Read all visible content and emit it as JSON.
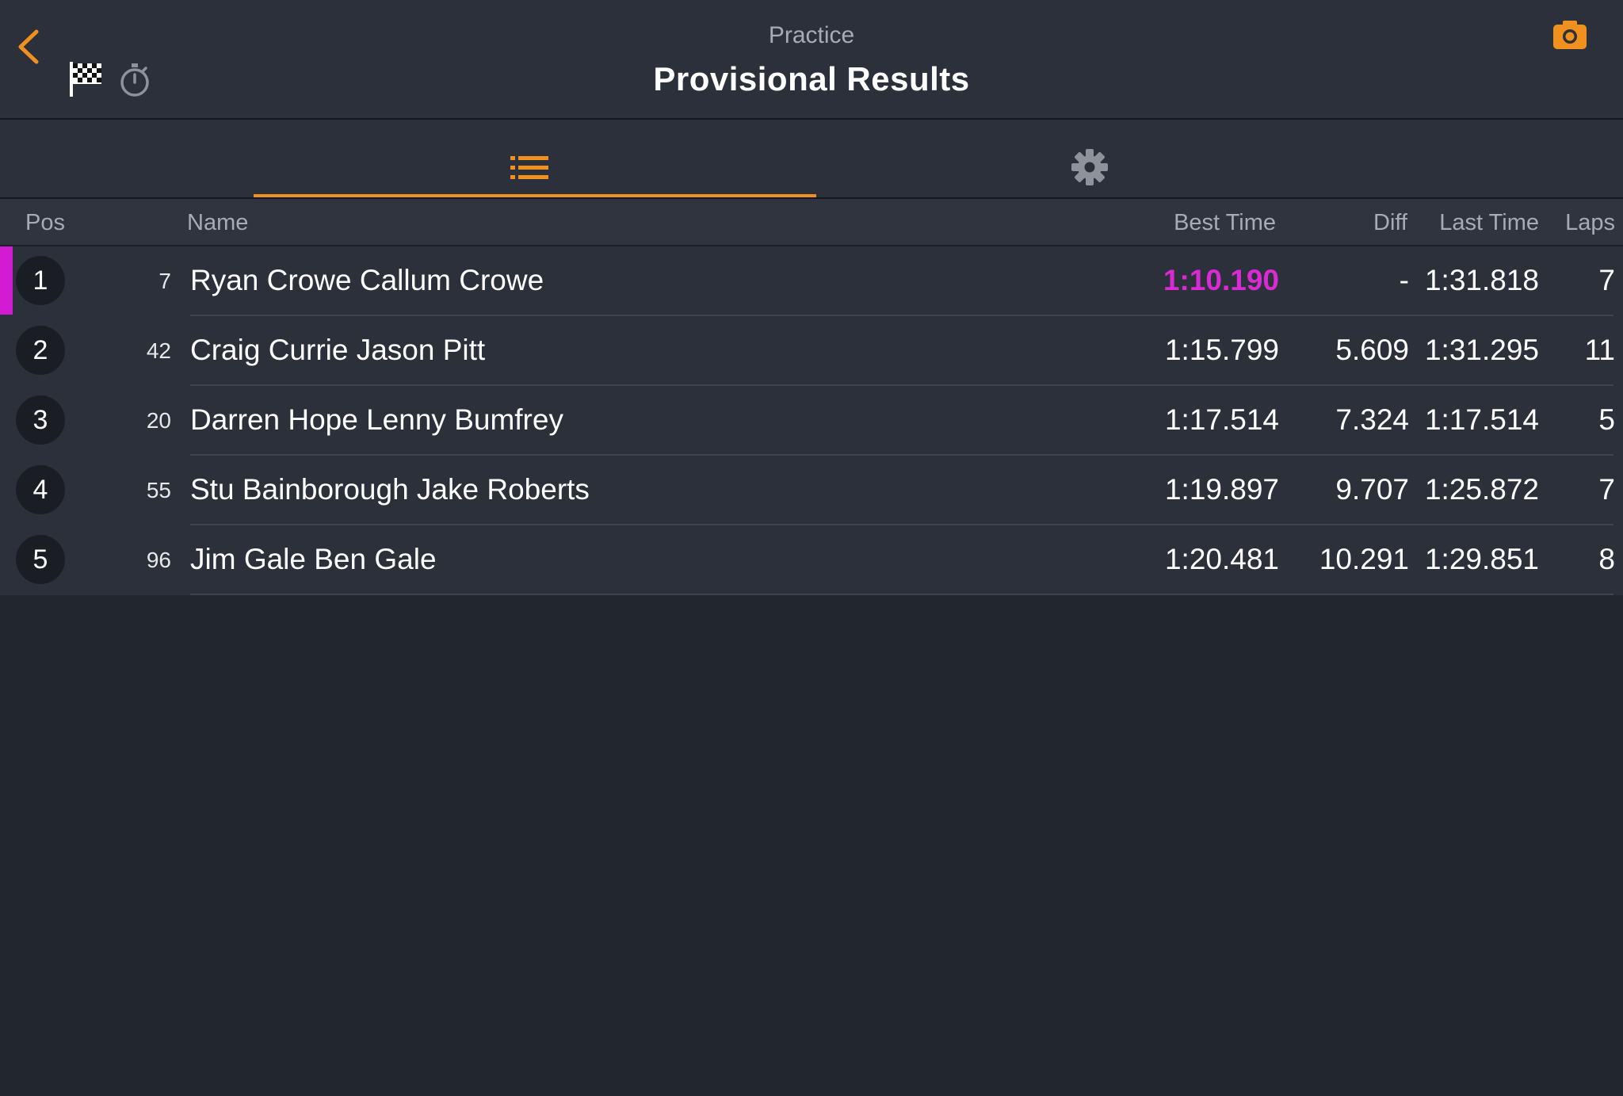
{
  "header": {
    "subtitle": "Practice",
    "title": "Provisional Results",
    "icons": [
      "back-chevron-icon",
      "checkered-flag-icon",
      "stopwatch-icon",
      "camera-icon"
    ]
  },
  "tabs": [
    {
      "name": "results-list",
      "icon": "list-icon",
      "active": true
    },
    {
      "name": "settings",
      "icon": "gear-icon",
      "active": false
    }
  ],
  "columns": {
    "pos": "Pos",
    "name": "Name",
    "best": "Best Time",
    "diff": "Diff",
    "last": "Last Time",
    "laps": "Laps"
  },
  "rows": [
    {
      "pos": "1",
      "num": "7",
      "name": "Ryan Crowe Callum Crowe",
      "best": "1:10.190",
      "diff": "-",
      "last": "1:31.818",
      "laps": "7"
    },
    {
      "pos": "2",
      "num": "42",
      "name": "Craig Currie Jason Pitt",
      "best": "1:15.799",
      "diff": "5.609",
      "last": "1:31.295",
      "laps": "11"
    },
    {
      "pos": "3",
      "num": "20",
      "name": "Darren Hope Lenny Bumfrey",
      "best": "1:17.514",
      "diff": "7.324",
      "last": "1:17.514",
      "laps": "5"
    },
    {
      "pos": "4",
      "num": "55",
      "name": "Stu Bainborough Jake Roberts",
      "best": "1:19.897",
      "diff": "9.707",
      "last": "1:25.872",
      "laps": "7"
    },
    {
      "pos": "5",
      "num": "96",
      "name": "Jim Gale Ben Gale",
      "best": "1:20.481",
      "diff": "10.291",
      "last": "1:29.851",
      "laps": "8"
    }
  ],
  "colors": {
    "accent": "#f0901e",
    "fastest": "#d92bd4",
    "background": "#22262f",
    "header": "#2b303b"
  }
}
